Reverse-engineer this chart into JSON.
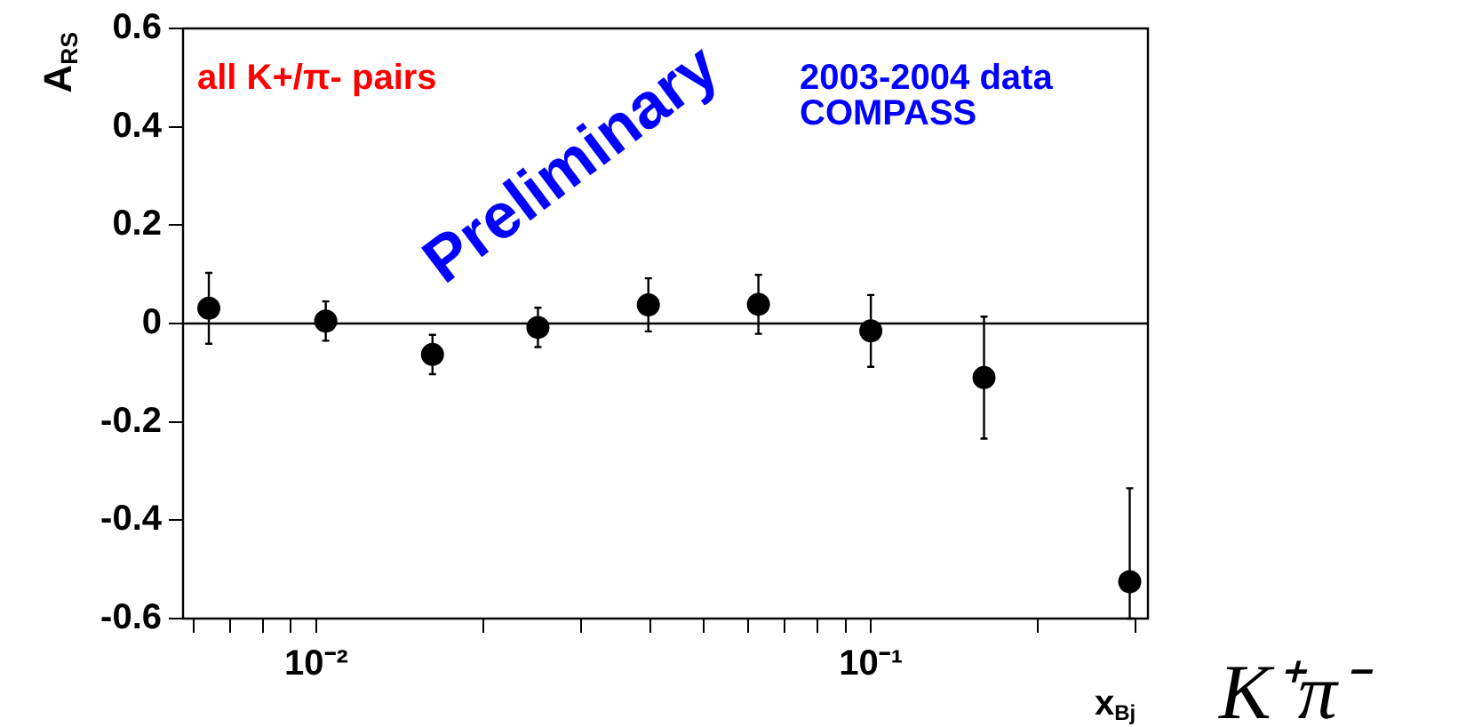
{
  "chart_data": {
    "type": "scatter",
    "xlabel": "x$_{Bj}$",
    "ylabel": "A$_{RS}$",
    "annotations": [
      "all K+/π- pairs",
      "Preliminary",
      "2003-2004 data",
      "COMPASS",
      "K⁺π⁻"
    ],
    "x": [
      0.0064,
      0.0104,
      0.0162,
      0.0251,
      0.0397,
      0.0627,
      0.1,
      0.16,
      0.293
    ],
    "series": [
      {
        "color": "#000000",
        "values": [
          0.031,
          0.005,
          -0.063,
          -0.008,
          0.038,
          0.039,
          -0.015,
          -0.11,
          -0.525
        ],
        "errors": [
          0.072,
          0.04,
          0.04,
          0.04,
          0.054,
          0.06,
          0.073,
          0.124,
          [
            -0.6,
            -0.335
          ]
        ]
      }
    ],
    "log": "x",
    "xlim": [
      0.00575,
      0.316
    ],
    "ylim": [
      -0.6,
      0.6
    ],
    "xticks": [
      {
        "value": 0.006,
        "label": null
      },
      {
        "value": 0.007,
        "label": null
      },
      {
        "value": 0.008,
        "label": null
      },
      {
        "value": 0.009,
        "label": null
      },
      {
        "value": 0.01,
        "label": "10⁻²"
      },
      {
        "value": 0.02,
        "label": null
      },
      {
        "value": 0.03,
        "label": null
      },
      {
        "value": 0.04,
        "label": null
      },
      {
        "value": 0.05,
        "label": null
      },
      {
        "value": 0.06,
        "label": null
      },
      {
        "value": 0.07,
        "label": null
      },
      {
        "value": 0.08,
        "label": null
      },
      {
        "value": 0.09,
        "label": null
      },
      {
        "value": 0.1,
        "label": "10⁻¹"
      },
      {
        "value": 0.2,
        "label": null
      },
      {
        "value": 0.3,
        "label": null
      }
    ],
    "yticks": [
      -0.6,
      -0.4,
      -0.2,
      0,
      0.2,
      0.4,
      0.6
    ],
    "ref_lines": [
      {
        "axis": "y",
        "value": 0,
        "color": "#000000"
      }
    ],
    "grid": false,
    "legend": false,
    "marker": "circle"
  }
}
